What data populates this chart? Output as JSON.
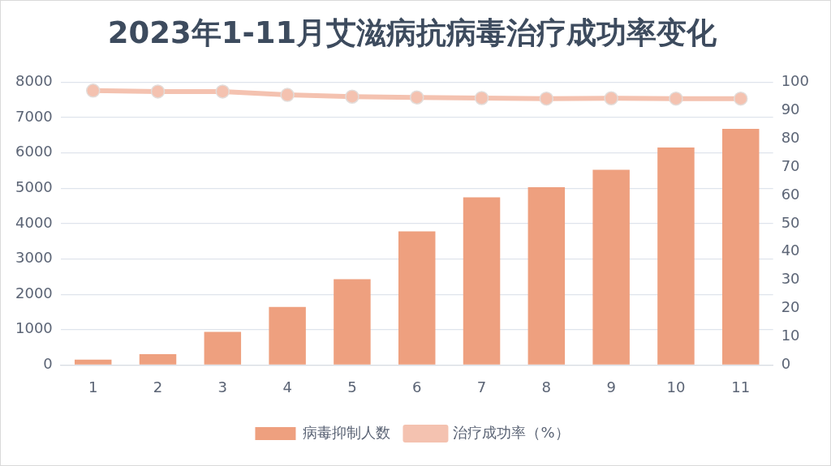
{
  "chart_data": {
    "type": "bar",
    "title": "2023年1-11月艾滋病抗病毒治疗成功率变化",
    "categories": [
      "1",
      "2",
      "3",
      "4",
      "5",
      "6",
      "7",
      "8",
      "9",
      "10",
      "11"
    ],
    "series": [
      {
        "name": "病毒抑制人数",
        "color": "#eea07f",
        "values": [
          150,
          310,
          940,
          1640,
          2430,
          3780,
          4740,
          5030,
          5520,
          6150,
          6680
        ]
      },
      {
        "name": "治疗成功率（%）",
        "type": "line",
        "axis": "y2",
        "color": "#f4c2b0",
        "values": [
          97.0,
          96.7,
          96.7,
          95.5,
          94.9,
          94.6,
          94.4,
          94.2,
          94.3,
          94.2,
          94.2
        ]
      }
    ],
    "ylim": [
      0,
      8000
    ],
    "yticks": [
      0,
      1000,
      2000,
      3000,
      4000,
      5000,
      6000,
      7000,
      8000
    ],
    "y2lim": [
      0,
      100
    ],
    "y2ticks": [
      0,
      10,
      20,
      30,
      40,
      50,
      60,
      70,
      80,
      90,
      100
    ],
    "grid": "y",
    "legend": "bottom",
    "marker": "circle",
    "line_style": "solid"
  }
}
